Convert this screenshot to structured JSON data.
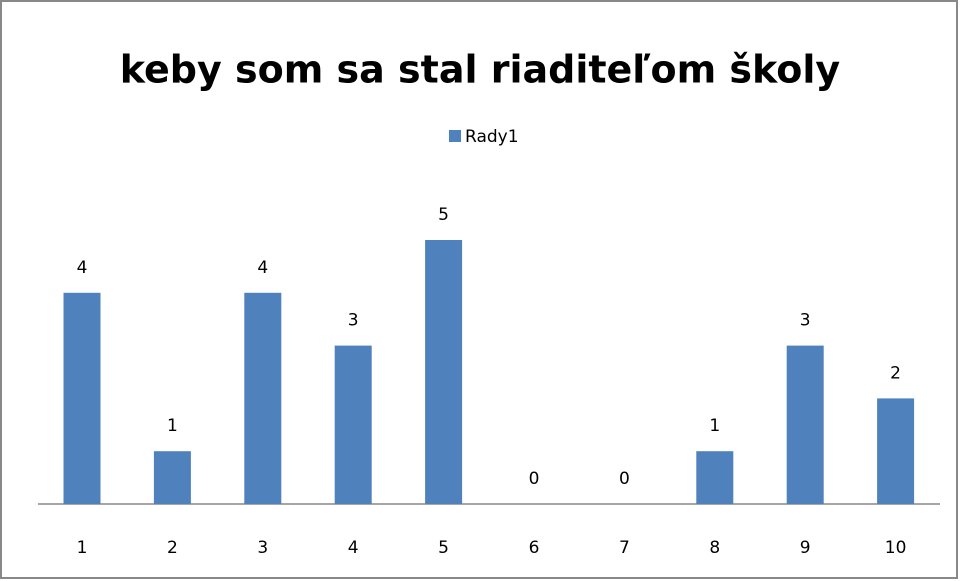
{
  "chart_data": {
    "type": "bar",
    "title": "keby som sa stal riaditeľom školy",
    "categories": [
      "1",
      "2",
      "3",
      "4",
      "5",
      "6",
      "7",
      "8",
      "9",
      "10"
    ],
    "series": [
      {
        "name": "Rady1",
        "color": "#4f81bd",
        "values": [
          4,
          1,
          4,
          3,
          5,
          0,
          0,
          1,
          3,
          2
        ]
      }
    ],
    "legend": "top"
  }
}
